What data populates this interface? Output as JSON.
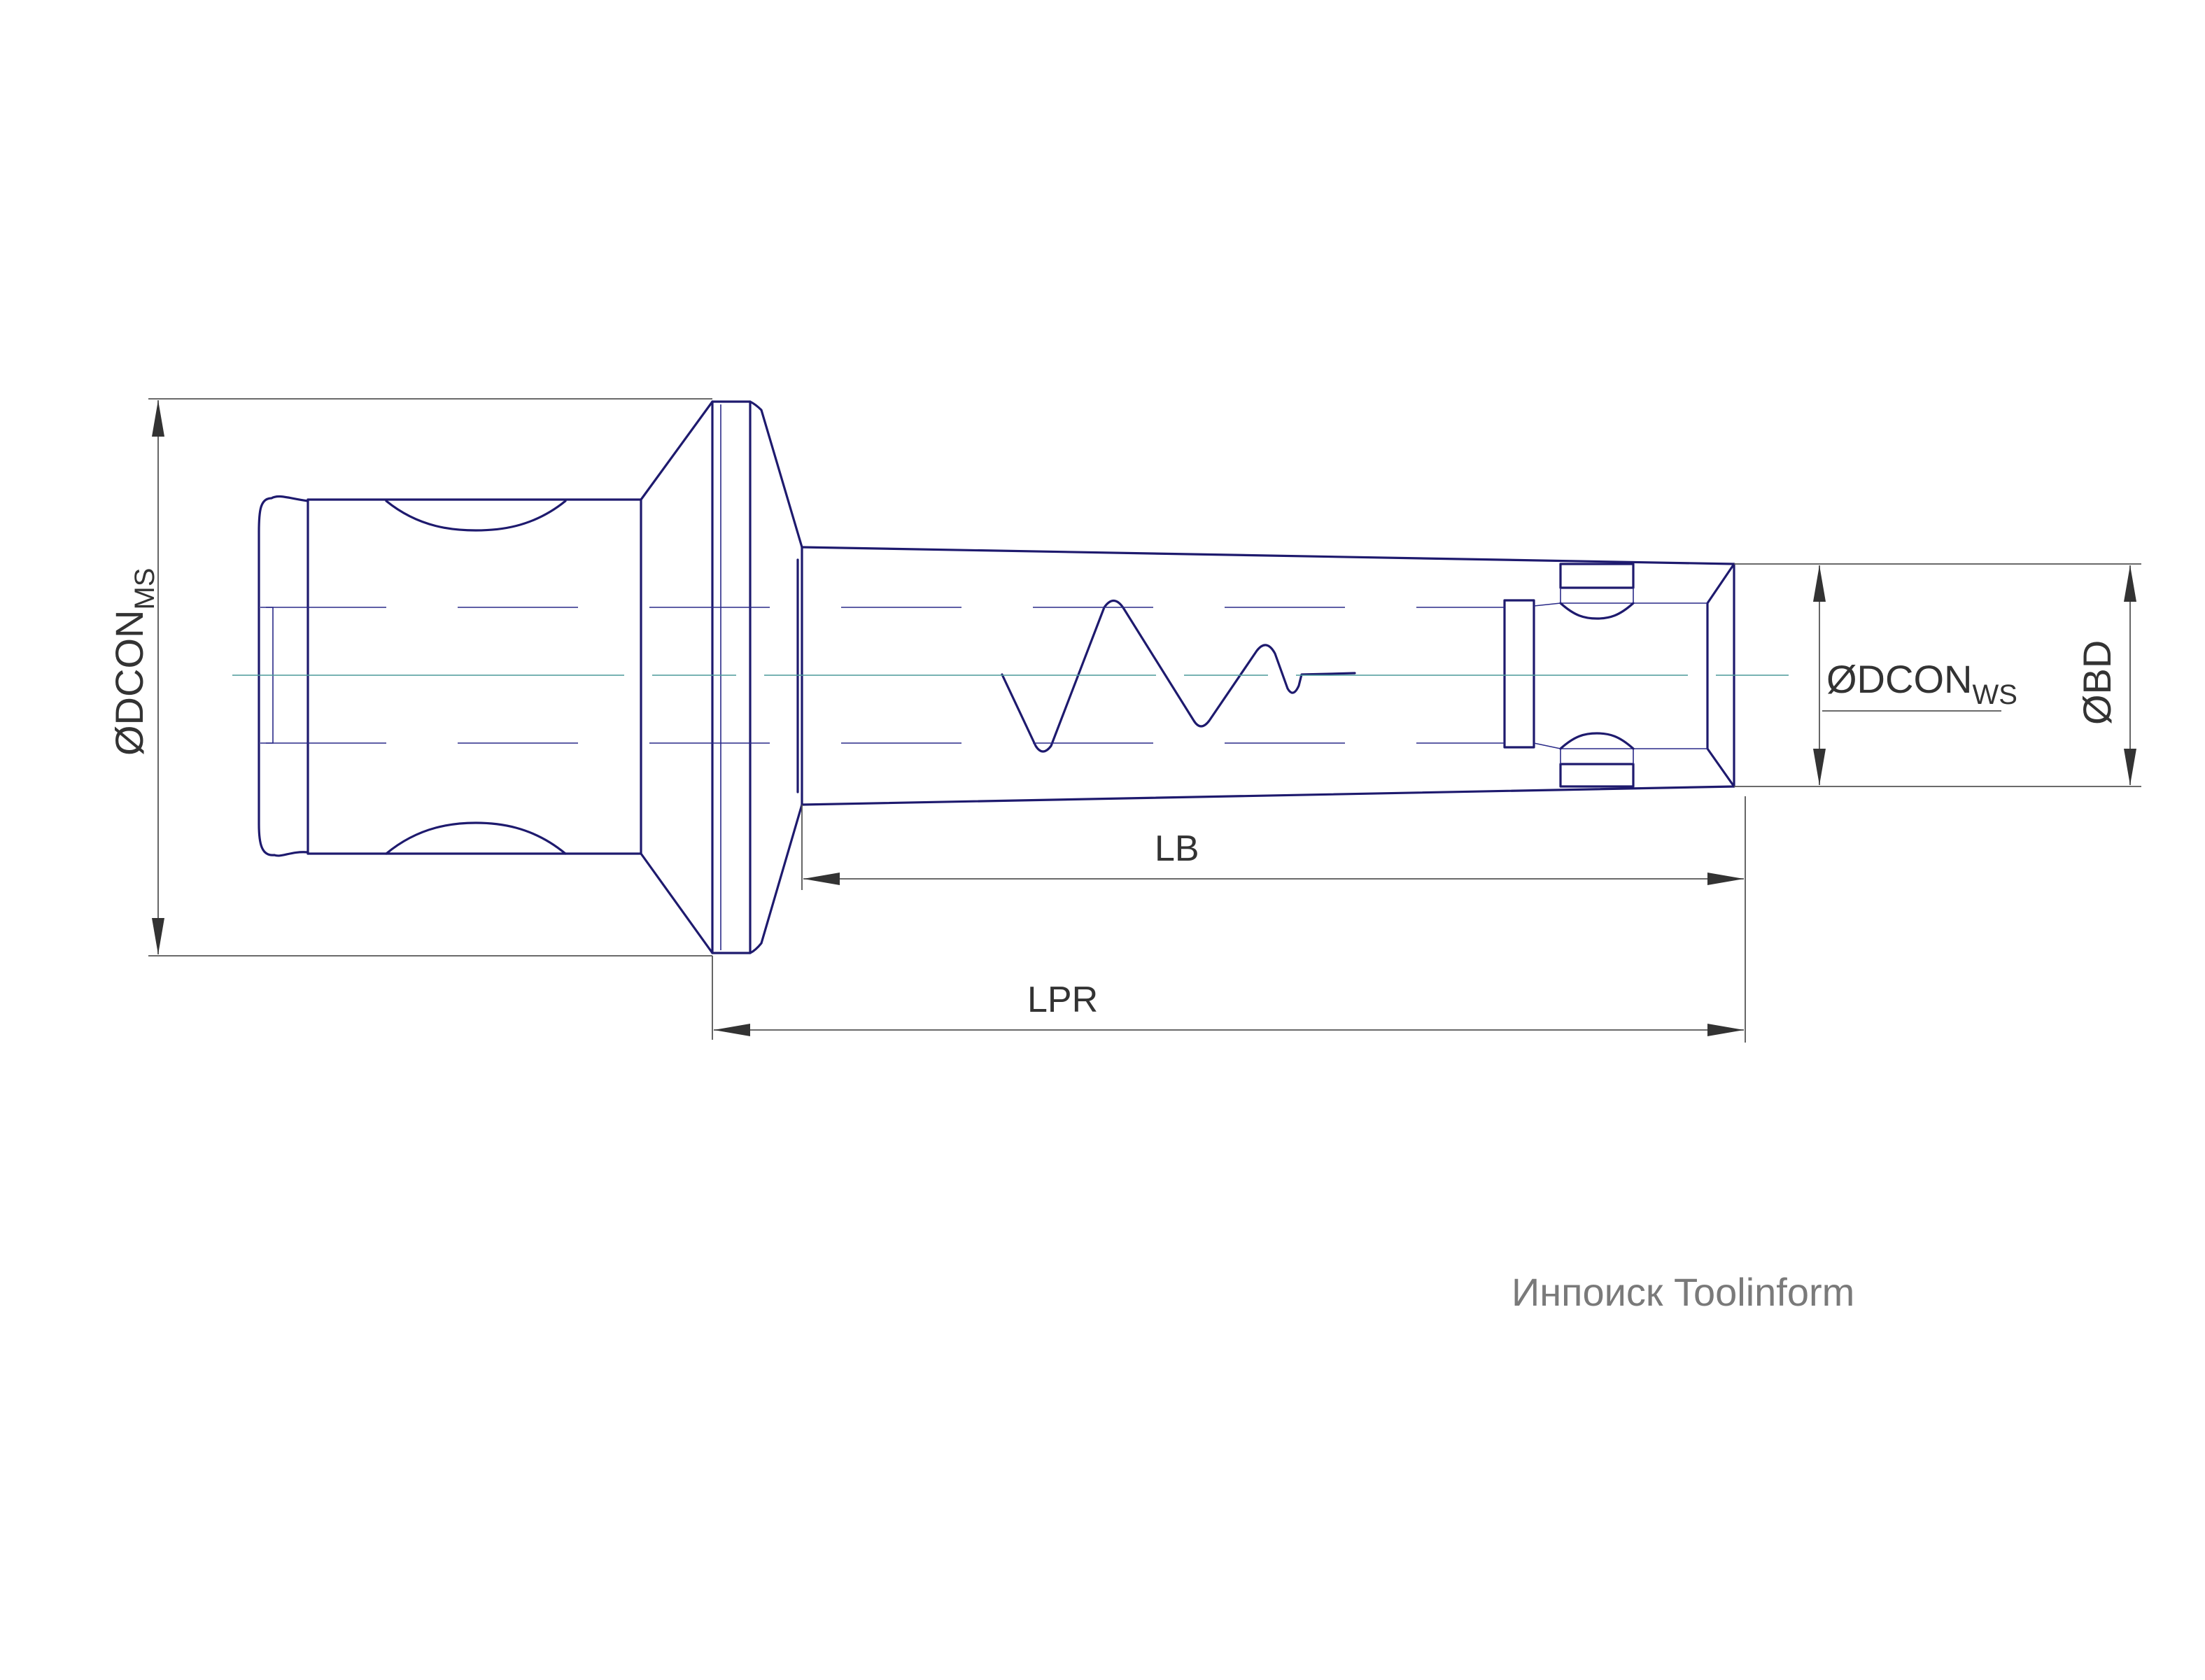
{
  "labels": {
    "dcon_ms": {
      "main": "ØDCON",
      "sub": "MS"
    },
    "dcon_ws": {
      "main": "ØDCON",
      "sub": "WS"
    },
    "bd": "ØBD",
    "lb": "LB",
    "lpr": "LPR"
  },
  "watermark": "Инпоиск Toolinform",
  "colors": {
    "outline": "#1e1a6e",
    "centerline": "#4a9a9a",
    "dimension": "#555555",
    "watermark": "#7a7a7a"
  }
}
